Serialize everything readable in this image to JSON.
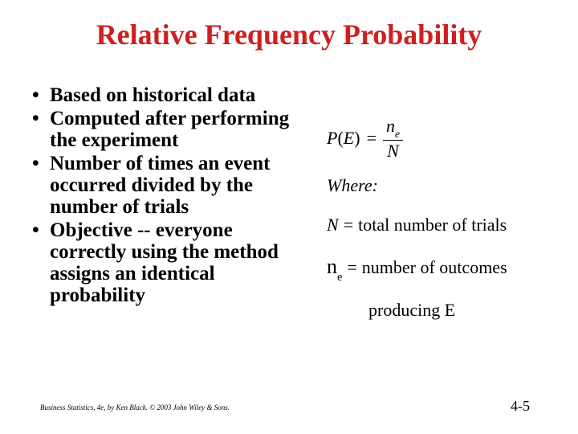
{
  "title": "Relative Frequency Probability",
  "title_color": "#cf1f1f",
  "title_fontsize": 36,
  "bullets": {
    "b0": "Based on historical data",
    "b1": "Computed after performing the experiment",
    "b2": "Number of times an event occurred divided by the number of trials",
    "b3": "Objective -- everyone correctly using the method assigns an identical probability"
  },
  "bullet_fontsize": 25,
  "formula": {
    "lhs_P": "P",
    "lhs_open": "(",
    "lhs_E": "E",
    "lhs_close": ")",
    "eq": "=",
    "num_n": "n",
    "num_sub": "e",
    "den_N": "N"
  },
  "where_label": "Where:",
  "def_N": {
    "sym": "N",
    "eq": "=",
    "txt": "total number of trials"
  },
  "def_ne": {
    "sym_n": "n",
    "sym_sub": "e",
    "eq": "=",
    "txt": "number of outcomes",
    "txt2": "producing E"
  },
  "footer": {
    "left": "Business Statistics, 4e, by Ken Black. © 2003 John Wiley & Sons.",
    "right": "4-5"
  },
  "colors": {
    "background": "#ffffff",
    "text": "#000000",
    "title": "#cf1f1f"
  }
}
